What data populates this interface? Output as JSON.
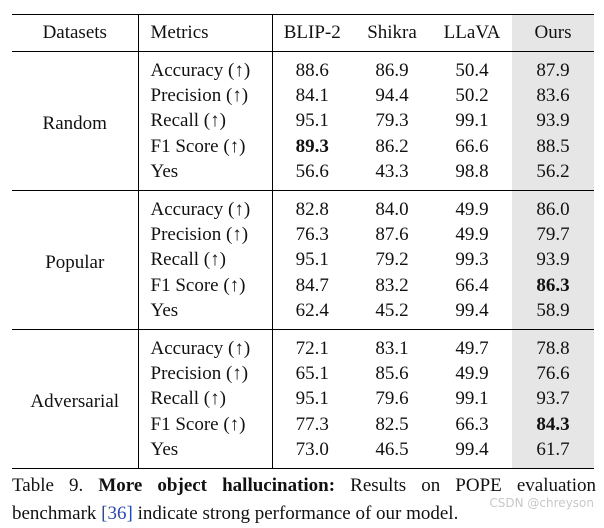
{
  "table": {
    "headers": [
      "Datasets",
      "Metrics",
      "BLIP-2",
      "Shikra",
      "LLaVA",
      "Ours"
    ],
    "groups": [
      {
        "dataset": "Random",
        "rows": [
          {
            "metric": "Accuracy (↑)",
            "values": [
              "88.6",
              "86.9",
              "50.4",
              "87.9"
            ],
            "bold": [
              false,
              false,
              false,
              false
            ]
          },
          {
            "metric": "Precision (↑)",
            "values": [
              "84.1",
              "94.4",
              "50.2",
              "83.6"
            ],
            "bold": [
              false,
              false,
              false,
              false
            ]
          },
          {
            "metric": "Recall (↑)",
            "values": [
              "95.1",
              "79.3",
              "99.1",
              "93.9"
            ],
            "bold": [
              false,
              false,
              false,
              false
            ]
          },
          {
            "metric": "F1 Score (↑)",
            "values": [
              "89.3",
              "86.2",
              "66.6",
              "88.5"
            ],
            "bold": [
              true,
              false,
              false,
              false
            ]
          },
          {
            "metric": "Yes",
            "values": [
              "56.6",
              "43.3",
              "98.8",
              "56.2"
            ],
            "bold": [
              false,
              false,
              false,
              false
            ]
          }
        ]
      },
      {
        "dataset": "Popular",
        "rows": [
          {
            "metric": "Accuracy (↑)",
            "values": [
              "82.8",
              "84.0",
              "49.9",
              "86.0"
            ],
            "bold": [
              false,
              false,
              false,
              false
            ]
          },
          {
            "metric": "Precision (↑)",
            "values": [
              "76.3",
              "87.6",
              "49.9",
              "79.7"
            ],
            "bold": [
              false,
              false,
              false,
              false
            ]
          },
          {
            "metric": "Recall (↑)",
            "values": [
              "95.1",
              "79.2",
              "99.3",
              "93.9"
            ],
            "bold": [
              false,
              false,
              false,
              false
            ]
          },
          {
            "metric": "F1 Score (↑)",
            "values": [
              "84.7",
              "83.2",
              "66.4",
              "86.3"
            ],
            "bold": [
              false,
              false,
              false,
              true
            ]
          },
          {
            "metric": "Yes",
            "values": [
              "62.4",
              "45.2",
              "99.4",
              "58.9"
            ],
            "bold": [
              false,
              false,
              false,
              false
            ]
          }
        ]
      },
      {
        "dataset": "Adversarial",
        "rows": [
          {
            "metric": "Accuracy (↑)",
            "values": [
              "72.1",
              "83.1",
              "49.7",
              "78.8"
            ],
            "bold": [
              false,
              false,
              false,
              false
            ]
          },
          {
            "metric": "Precision (↑)",
            "values": [
              "65.1",
              "85.6",
              "49.9",
              "76.6"
            ],
            "bold": [
              false,
              false,
              false,
              false
            ]
          },
          {
            "metric": "Recall (↑)",
            "values": [
              "95.1",
              "79.6",
              "99.1",
              "93.7"
            ],
            "bold": [
              false,
              false,
              false,
              false
            ]
          },
          {
            "metric": "F1 Score (↑)",
            "values": [
              "77.3",
              "82.5",
              "66.3",
              "84.3"
            ],
            "bold": [
              false,
              false,
              false,
              true
            ]
          },
          {
            "metric": "Yes",
            "values": [
              "73.0",
              "46.5",
              "99.4",
              "61.7"
            ],
            "bold": [
              false,
              false,
              false,
              false
            ]
          }
        ]
      }
    ]
  },
  "caption": {
    "label": "Table 9.",
    "title": "More object hallucination:",
    "text_before_cite": " Results on POPE evaluation benchmark ",
    "cite": "[36]",
    "text_after_cite": " indicate strong performance of our model."
  },
  "watermark": "CSDN @chreyson",
  "colors": {
    "ours_highlight": "#e6e6e6",
    "citation": "#2b4aa8"
  }
}
